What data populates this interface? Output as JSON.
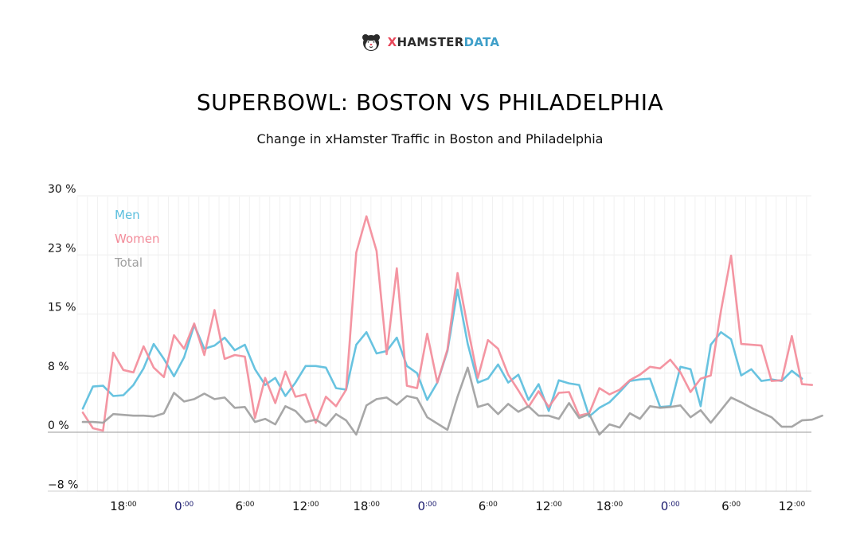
{
  "brand": {
    "name_prefix": "X",
    "name_main": "HAMSTER",
    "name_suffix": "DATA",
    "icon": "hamster-logo-icon"
  },
  "chart_data": {
    "type": "line",
    "title": "SUPERBOWL: BOSTON VS PHILADELPHIA",
    "subtitle": "Change in xHamster Traffic in Boston and Philadelphia",
    "xlabel": "",
    "ylabel": "",
    "ylim": [
      -8,
      30
    ],
    "y_ticks": [
      {
        "value": 30,
        "label": "30 %"
      },
      {
        "value": 22.5,
        "label": "23 %"
      },
      {
        "value": 15,
        "label": "15 %"
      },
      {
        "value": 7.5,
        "label": "8 %"
      },
      {
        "value": 0,
        "label": "0 %"
      },
      {
        "value": -7.5,
        "label": "−8 %"
      }
    ],
    "x_start_hour": 14,
    "x_step_hours": 1,
    "x_ticks": [
      {
        "hour": 18,
        "main": "18",
        "sup": ":00"
      },
      {
        "hour": 24,
        "main": "0",
        "sup": ":00"
      },
      {
        "hour": 30,
        "main": "6",
        "sup": ":00"
      },
      {
        "hour": 36,
        "main": "12",
        "sup": ":00"
      },
      {
        "hour": 42,
        "main": "18",
        "sup": ":00"
      },
      {
        "hour": 48,
        "main": "0",
        "sup": ":00"
      },
      {
        "hour": 54,
        "main": "6",
        "sup": ":00"
      },
      {
        "hour": 60,
        "main": "12",
        "sup": ":00"
      },
      {
        "hour": 66,
        "main": "18",
        "sup": ":00"
      },
      {
        "hour": 72,
        "main": "0",
        "sup": ":00"
      },
      {
        "hour": 78,
        "main": "6",
        "sup": ":00"
      },
      {
        "hour": 84,
        "main": "12",
        "sup": ":00"
      }
    ],
    "legend_position": "top-left",
    "grid": true,
    "series": [
      {
        "name": "Men",
        "color": "#5bbedd",
        "values": [
          3.0,
          5.8,
          5.9,
          4.6,
          4.7,
          6.0,
          8.1,
          11.2,
          9.3,
          7.1,
          9.5,
          13.6,
          10.6,
          11.0,
          12.0,
          10.4,
          11.1,
          8.0,
          6.0,
          6.9,
          4.6,
          6.3,
          8.4,
          8.4,
          8.2,
          5.6,
          5.4,
          11.1,
          12.7,
          10.0,
          10.3,
          12.0,
          8.4,
          7.5,
          4.1,
          6.3,
          10.3,
          18.1,
          11.2,
          6.3,
          6.8,
          8.6,
          6.3,
          7.3,
          4.1,
          6.1,
          2.7,
          6.6,
          6.2,
          6.0,
          2.0,
          3.1,
          3.8,
          5.1,
          6.5,
          6.7,
          6.8,
          3.2,
          3.3,
          8.3,
          8.0,
          3.3,
          11.1,
          12.7,
          11.8,
          7.2,
          8.0,
          6.5,
          6.7,
          6.5,
          7.8,
          6.8
        ]
      },
      {
        "name": "Women",
        "color": "#f38c9a",
        "values": [
          2.5,
          0.5,
          0.2,
          10.1,
          7.9,
          7.6,
          10.9,
          8.2,
          7.0,
          12.3,
          10.6,
          13.8,
          9.8,
          15.5,
          9.3,
          9.8,
          9.6,
          1.8,
          6.9,
          3.7,
          7.7,
          4.5,
          4.8,
          1.2,
          4.5,
          3.3,
          5.4,
          22.8,
          27.4,
          23.0,
          9.9,
          20.8,
          5.9,
          5.6,
          12.5,
          6.3,
          10.5,
          20.2,
          13.3,
          6.9,
          11.7,
          10.6,
          7.3,
          5.3,
          3.2,
          5.2,
          3.2,
          5.0,
          5.1,
          2.1,
          2.4,
          5.6,
          4.8,
          5.4,
          6.6,
          7.3,
          8.3,
          8.1,
          9.2,
          7.6,
          5.1,
          6.8,
          7.2,
          15.4,
          22.4,
          11.2,
          11.1,
          11.0,
          6.5,
          6.6,
          12.2,
          6.1,
          6.0
        ]
      },
      {
        "name": "Total",
        "color": "#a0a0a0",
        "values": [
          1.3,
          1.3,
          1.2,
          2.3,
          2.2,
          2.1,
          2.1,
          2.0,
          2.4,
          5.0,
          3.9,
          4.2,
          4.9,
          4.2,
          4.4,
          3.1,
          3.2,
          1.3,
          1.7,
          1.0,
          3.3,
          2.7,
          1.3,
          1.6,
          0.8,
          2.3,
          1.5,
          -0.3,
          3.4,
          4.2,
          4.4,
          3.5,
          4.6,
          4.3,
          1.9,
          1.1,
          0.3,
          4.5,
          8.2,
          3.2,
          3.6,
          2.3,
          3.6,
          2.6,
          3.3,
          2.1,
          2.1,
          1.7,
          3.7,
          1.8,
          2.3,
          -0.3,
          1.0,
          0.6,
          2.4,
          1.7,
          3.3,
          3.1,
          3.2,
          3.4,
          1.9,
          2.8,
          1.2,
          2.8,
          4.4,
          3.8,
          3.1,
          2.5,
          1.9,
          0.7,
          0.7,
          1.5,
          1.6,
          2.1
        ]
      }
    ]
  }
}
